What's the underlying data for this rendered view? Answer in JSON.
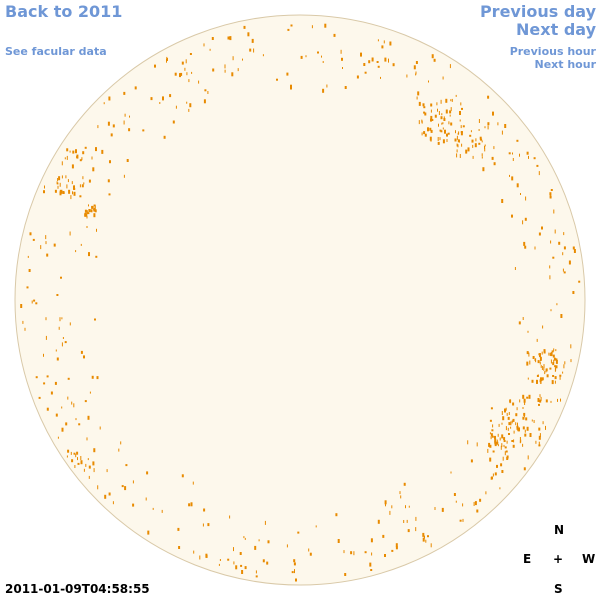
{
  "nav": {
    "back": "Back to 2011",
    "facular": "See facular data",
    "prev_day": "Previous day",
    "next_day": "Next day",
    "prev_hour": "Previous hour",
    "next_hour": "Next hour"
  },
  "timestamp": "2011-01-09T04:58:55",
  "compass": {
    "north": "N",
    "east": "E",
    "center": "+",
    "west": "W",
    "south": "S"
  },
  "colors": {
    "disk_fill": "#fdf8ec",
    "disk_edge": "#d9c9a8",
    "feature": "#e88a00",
    "link": "#6f97d6"
  }
}
